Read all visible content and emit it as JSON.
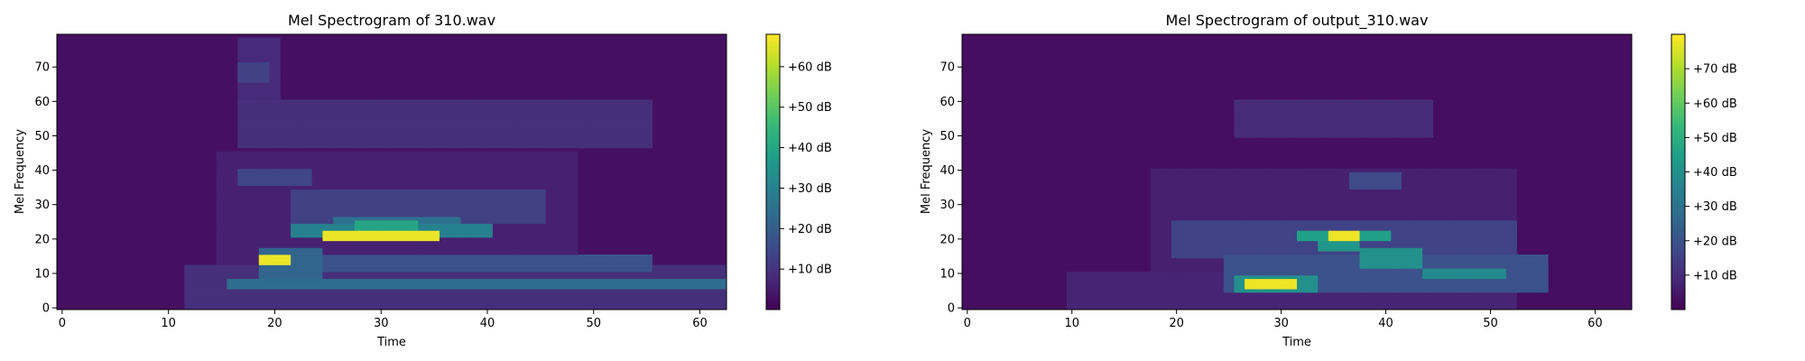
{
  "chart_data": [
    {
      "type": "heatmap",
      "title": "Mel Spectrogram of 310.wav",
      "xlabel": "Time",
      "ylabel": "Mel Frequency",
      "xlim": [
        -0.5,
        62.5
      ],
      "ylim": [
        -0.5,
        79.5
      ],
      "xticks": [
        0,
        10,
        20,
        30,
        40,
        50,
        60
      ],
      "xtick_labels": [
        "0",
        "10",
        "20",
        "30",
        "40",
        "50",
        "60"
      ],
      "yticks": [
        0,
        10,
        20,
        30,
        40,
        50,
        60,
        70
      ],
      "ytick_labels": [
        "0",
        "10",
        "20",
        "30",
        "40",
        "50",
        "60",
        "70"
      ],
      "colormap": "viridis",
      "colorbar": {
        "min": 0,
        "max": 68,
        "ticks": [
          10,
          20,
          30,
          40,
          50,
          60
        ],
        "tick_labels": [
          "+10 dB",
          "+20 dB",
          "+30 dB",
          "+40 dB",
          "+50 dB",
          "+60 dB"
        ]
      },
      "background_db": 3,
      "regions": [
        {
          "t": [
            12,
            62
          ],
          "m": [
            0,
            12
          ],
          "db": 9
        },
        {
          "t": [
            15,
            48
          ],
          "m": [
            0,
            45
          ],
          "db": 6
        },
        {
          "t": [
            17,
            20
          ],
          "m": [
            60,
            78
          ],
          "db": 8
        },
        {
          "t": [
            17,
            19
          ],
          "m": [
            66,
            71
          ],
          "db": 13
        },
        {
          "t": [
            17,
            55
          ],
          "m": [
            47,
            60
          ],
          "db": 9
        },
        {
          "t": [
            17,
            23
          ],
          "m": [
            36,
            40
          ],
          "db": 14
        },
        {
          "t": [
            22,
            45
          ],
          "m": [
            25,
            34
          ],
          "db": 13
        },
        {
          "t": [
            19,
            24
          ],
          "m": [
            9,
            17
          ],
          "db": 22
        },
        {
          "t": [
            22,
            40
          ],
          "m": [
            21,
            24
          ],
          "db": 30
        },
        {
          "t": [
            26,
            37
          ],
          "m": [
            23,
            26
          ],
          "db": 25
        },
        {
          "t": [
            16,
            62
          ],
          "m": [
            6,
            8
          ],
          "db": 24
        },
        {
          "t": [
            22,
            55
          ],
          "m": [
            11,
            15
          ],
          "db": 17
        },
        {
          "t": [
            25,
            35
          ],
          "m": [
            20,
            22
          ],
          "db": 66
        },
        {
          "t": [
            19,
            21
          ],
          "m": [
            13,
            15
          ],
          "db": 66
        },
        {
          "t": [
            28,
            33
          ],
          "m": [
            23,
            25
          ],
          "db": 40
        }
      ]
    },
    {
      "type": "heatmap",
      "title": "Mel Spectrogram of output_310.wav",
      "xlabel": "Time",
      "ylabel": "Mel Frequency",
      "xlim": [
        -0.5,
        63.5
      ],
      "ylim": [
        -0.5,
        79.5
      ],
      "xticks": [
        0,
        10,
        20,
        30,
        40,
        50,
        60
      ],
      "xtick_labels": [
        "0",
        "10",
        "20",
        "30",
        "40",
        "50",
        "60"
      ],
      "yticks": [
        0,
        10,
        20,
        30,
        40,
        50,
        60,
        70
      ],
      "ytick_labels": [
        "0",
        "10",
        "20",
        "30",
        "40",
        "50",
        "60",
        "70"
      ],
      "colormap": "viridis",
      "colorbar": {
        "min": 0,
        "max": 80,
        "ticks": [
          10,
          20,
          30,
          40,
          50,
          60,
          70
        ],
        "tick_labels": [
          "+10 dB",
          "+20 dB",
          "+30 dB",
          "+40 dB",
          "+50 dB",
          "+60 dB",
          "+70 dB"
        ]
      },
      "background_db": 3,
      "regions": [
        {
          "t": [
            10,
            52
          ],
          "m": [
            0,
            10
          ],
          "db": 8
        },
        {
          "t": [
            18,
            52
          ],
          "m": [
            0,
            40
          ],
          "db": 7
        },
        {
          "t": [
            26,
            44
          ],
          "m": [
            50,
            60
          ],
          "db": 10
        },
        {
          "t": [
            20,
            52
          ],
          "m": [
            15,
            25
          ],
          "db": 16
        },
        {
          "t": [
            25,
            55
          ],
          "m": [
            5,
            15
          ],
          "db": 20
        },
        {
          "t": [
            32,
            40
          ],
          "m": [
            20,
            22
          ],
          "db": 45
        },
        {
          "t": [
            35,
            37
          ],
          "m": [
            20,
            22
          ],
          "db": 78
        },
        {
          "t": [
            34,
            37
          ],
          "m": [
            17,
            19
          ],
          "db": 42
        },
        {
          "t": [
            27,
            31
          ],
          "m": [
            6,
            8
          ],
          "db": 78
        },
        {
          "t": [
            26,
            33
          ],
          "m": [
            5,
            9
          ],
          "db": 40
        },
        {
          "t": [
            38,
            43
          ],
          "m": [
            12,
            17
          ],
          "db": 40
        },
        {
          "t": [
            44,
            51
          ],
          "m": [
            9,
            11
          ],
          "db": 38
        },
        {
          "t": [
            37,
            41
          ],
          "m": [
            35,
            39
          ],
          "db": 18
        }
      ]
    }
  ]
}
